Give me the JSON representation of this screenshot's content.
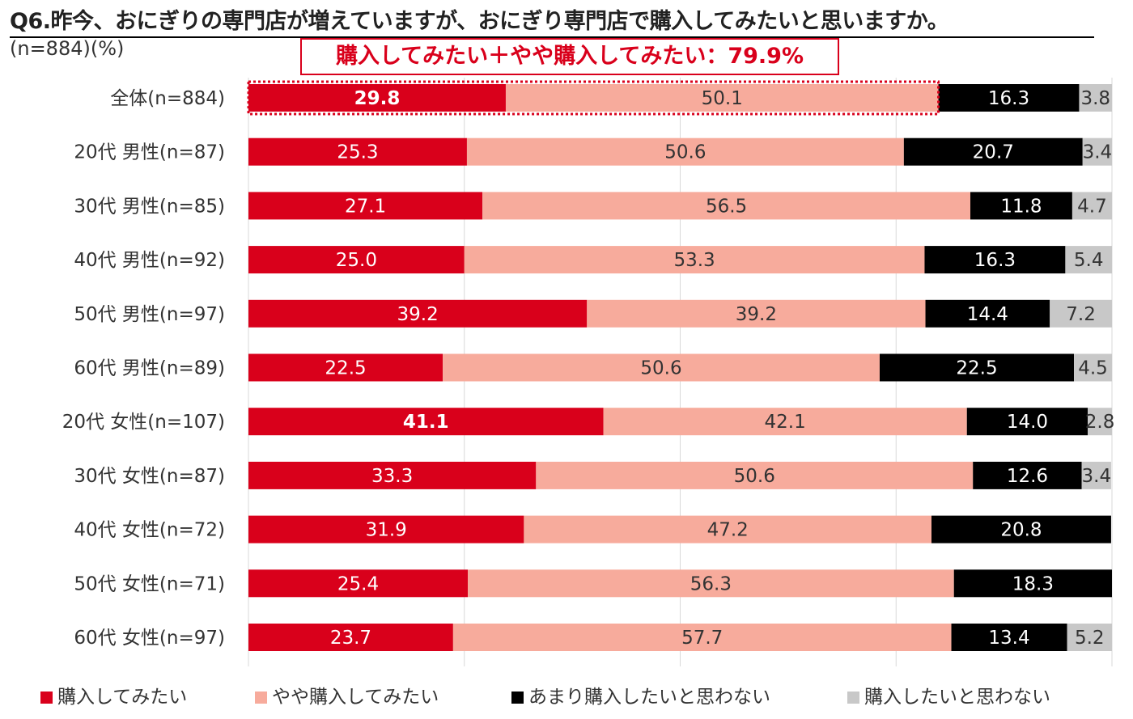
{
  "chart_data": {
    "type": "bar",
    "orientation": "horizontal",
    "stacked": true,
    "title": "Q6.昨今、おにぎりの専門店が増えていますが、おにぎり専門店で購入してみたいと思いますか。",
    "subtitle": "(n=884)(%)",
    "categories": [
      "全体(n=884)",
      "20代 男性(n=87)",
      "30代 男性(n=85)",
      "40代 男性(n=92)",
      "50代 男性(n=97)",
      "60代 男性(n=89)",
      "20代 女性(n=107)",
      "30代 女性(n=87)",
      "40代 女性(n=72)",
      "50代 女性(n=71)",
      "60代 女性(n=97)"
    ],
    "series": [
      {
        "name": "購入してみたい",
        "color": "#d9001b",
        "values": [
          29.8,
          25.3,
          27.1,
          25.0,
          39.2,
          22.5,
          41.1,
          33.3,
          31.9,
          25.4,
          23.7
        ]
      },
      {
        "name": "やや購入してみたい",
        "color": "#f7ab9c",
        "values": [
          50.1,
          50.6,
          56.5,
          53.3,
          39.2,
          50.6,
          42.1,
          50.6,
          47.2,
          56.3,
          57.7
        ]
      },
      {
        "name": "あまり購入したいと思わない",
        "color": "#000000",
        "values": [
          16.3,
          20.7,
          11.8,
          16.3,
          14.4,
          22.5,
          14.0,
          12.6,
          20.8,
          18.3,
          13.4
        ]
      },
      {
        "name": "購入したいと思わない",
        "color": "#c8c8c8",
        "values": [
          3.8,
          3.4,
          4.7,
          5.4,
          7.2,
          4.5,
          2.8,
          3.4,
          null,
          null,
          5.2
        ]
      }
    ],
    "bold_labels": [
      [
        0,
        0
      ],
      [
        6,
        0
      ]
    ],
    "callout": "購入してみたい＋やや購入してみたい：79.9%",
    "xlim": [
      0,
      100
    ],
    "grid": true,
    "legend_position": "bottom"
  }
}
